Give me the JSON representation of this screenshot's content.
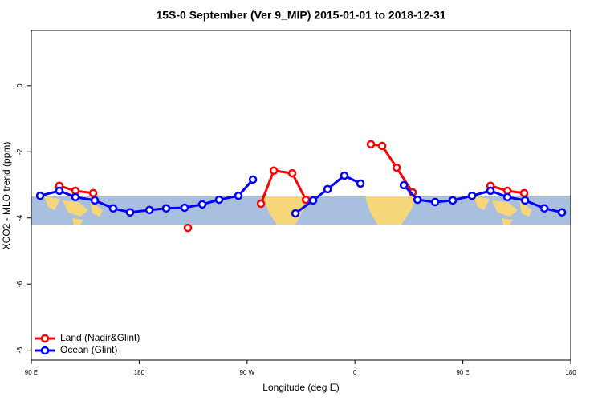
{
  "chart_data": {
    "type": "line",
    "title": "15S-0 September (Ver 9_MIP)   2015-01-01 to 2018-12-31",
    "x_label": "Longitude (deg E)",
    "y_label": "XCO2 - MLO trend (ppm)",
    "xlim": [
      90,
      540
    ],
    "ylim": [
      -8.3,
      1.67
    ],
    "xticks": [
      {
        "value": 90,
        "label": "90 E"
      },
      {
        "value": 180,
        "label": "180"
      },
      {
        "value": 270,
        "label": "90 W"
      },
      {
        "value": 360,
        "label": "0"
      },
      {
        "value": 450,
        "label": "90 E"
      },
      {
        "value": 540,
        "label": "180"
      }
    ],
    "yticks": [
      0,
      -2,
      -4,
      -6,
      -8
    ],
    "legend": "bottom-left",
    "series": [
      {
        "name": "Land (Nadir&Glint)",
        "color": "#ff0000",
        "x": [
          113.4,
          126.8,
          141.6,
          null,
          220.6,
          null,
          281.6,
          292.3,
          307.7,
          319.1,
          null,
          373.3,
          382.7,
          394.8,
          408.1,
          null,
          473.1,
          487.2,
          501.2
        ],
        "values": [
          -3.03,
          -3.18,
          -3.25,
          null,
          -4.3,
          null,
          -3.57,
          -2.57,
          -2.65,
          -3.45,
          null,
          -1.77,
          -1.82,
          -2.48,
          -3.23,
          null,
          -3.03,
          -3.18,
          -3.25
        ]
      },
      {
        "name": "Ocean (Glint)",
        "color": "#0000ff",
        "x": [
          97.4,
          113.4,
          126.8,
          142.9,
          158.3,
          172.4,
          188.5,
          202.5,
          217.9,
          232.7,
          246.7,
          262.8,
          274.9,
          null,
          310.4,
          325.1,
          337.2,
          351.2,
          364.6,
          null,
          400.8,
          412.2,
          426.9,
          441.6,
          457.7,
          473.1,
          487.2,
          501.9,
          518.0,
          532.7
        ],
        "values": [
          -3.33,
          -3.18,
          -3.37,
          -3.47,
          -3.71,
          -3.83,
          -3.76,
          -3.71,
          -3.69,
          -3.59,
          -3.45,
          -3.33,
          -2.84,
          null,
          -3.86,
          -3.47,
          -3.13,
          -2.72,
          -2.96,
          null,
          -3.01,
          -3.45,
          -3.52,
          -3.47,
          -3.33,
          -3.18,
          -3.37,
          -3.47,
          -3.71,
          -3.83
        ]
      }
    ]
  }
}
